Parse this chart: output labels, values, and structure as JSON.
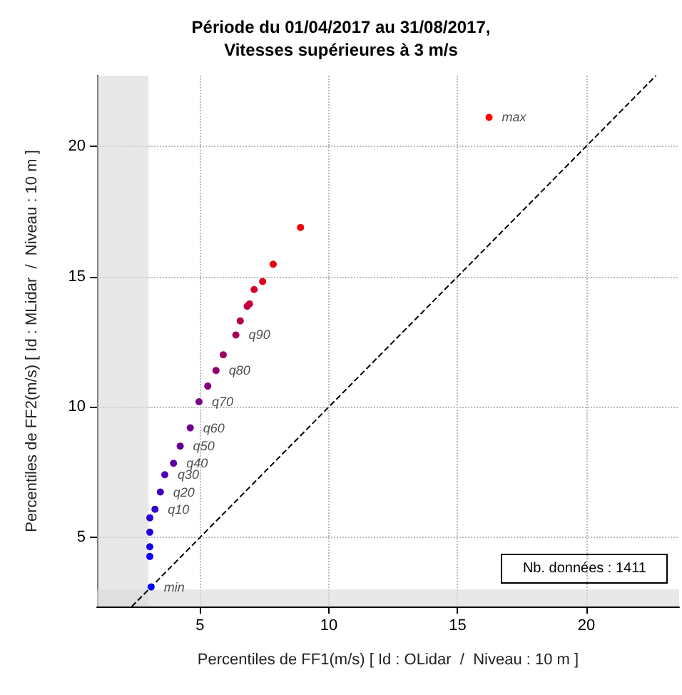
{
  "chart_data": {
    "type": "scatter",
    "title": "Période du 01/04/2017 au 31/08/2017,\nVitesses supérieures à 3 m/s",
    "xlabel": "Percentiles de FF1(m/s) [ Id : OLidar  /  Niveau : 10 m ]",
    "ylabel": "Percentiles de FF2(m/s) [ Id : MLidar  /  Niveau : 10 m ]",
    "xlim": [
      1,
      23.6
    ],
    "ylim": [
      2.35,
      22.7
    ],
    "xticks": [
      5,
      10,
      15,
      20
    ],
    "yticks": [
      5,
      10,
      15,
      20
    ],
    "grid": true,
    "series": [
      {
        "marker": "circle",
        "x": [
          3.1,
          3.05,
          3.05,
          3.05,
          3.05,
          3.25,
          3.46,
          3.63,
          3.97,
          4.23,
          4.62,
          4.96,
          5.3,
          5.62,
          5.9,
          6.39,
          6.56,
          6.83,
          6.92,
          7.1,
          7.43,
          7.84,
          8.9,
          16.22
        ],
        "values": [
          3.1,
          4.27,
          4.64,
          5.2,
          5.75,
          6.08,
          6.74,
          7.4,
          7.84,
          8.5,
          9.2,
          10.2,
          10.8,
          11.4,
          12.0,
          12.76,
          13.3,
          13.86,
          13.95,
          14.5,
          14.81,
          15.47,
          16.88,
          21.1
        ],
        "colors": [
          "#0000ff",
          "#0a00f5",
          "#1500ea",
          "#2000df",
          "#2c00d3",
          "#3700c8",
          "#4200bd",
          "#4d00b2",
          "#5900a6",
          "#64009b",
          "#6f0090",
          "#7a0085",
          "#850079",
          "#90006e",
          "#9c0063",
          "#a70058",
          "#b2004d",
          "#bd0042",
          "#c80037",
          "#d4002b",
          "#df0020",
          "#ea0015",
          "#f5000a",
          "#ff0000"
        ]
      },
      {
        "type": "line",
        "x": [
          2.35,
          22.7
        ],
        "values": [
          2.35,
          22.7
        ],
        "color": "#000000",
        "line_style": "dashed"
      }
    ],
    "bands": [
      {
        "axis": "x",
        "from": 1,
        "to": 3,
        "color": "#d9d9d9"
      },
      {
        "axis": "y",
        "from": 2.35,
        "to": 3,
        "color": "#d9d9d9"
      }
    ],
    "annotations": [
      {
        "text": "min",
        "x": 3.1,
        "y": 3.1
      },
      {
        "text": "q10",
        "x": 3.25,
        "y": 6.08
      },
      {
        "text": "q20",
        "x": 3.46,
        "y": 6.74
      },
      {
        "text": "q30",
        "x": 3.63,
        "y": 7.4
      },
      {
        "text": "q40",
        "x": 3.97,
        "y": 7.84
      },
      {
        "text": "q50",
        "x": 4.23,
        "y": 8.5
      },
      {
        "text": "q60",
        "x": 4.62,
        "y": 9.2
      },
      {
        "text": "q70",
        "x": 4.96,
        "y": 10.2
      },
      {
        "text": "q80",
        "x": 5.62,
        "y": 11.4
      },
      {
        "text": "q90",
        "x": 6.39,
        "y": 12.76
      },
      {
        "text": "max",
        "x": 16.22,
        "y": 21.1
      },
      "Nb. données : 1411"
    ]
  }
}
